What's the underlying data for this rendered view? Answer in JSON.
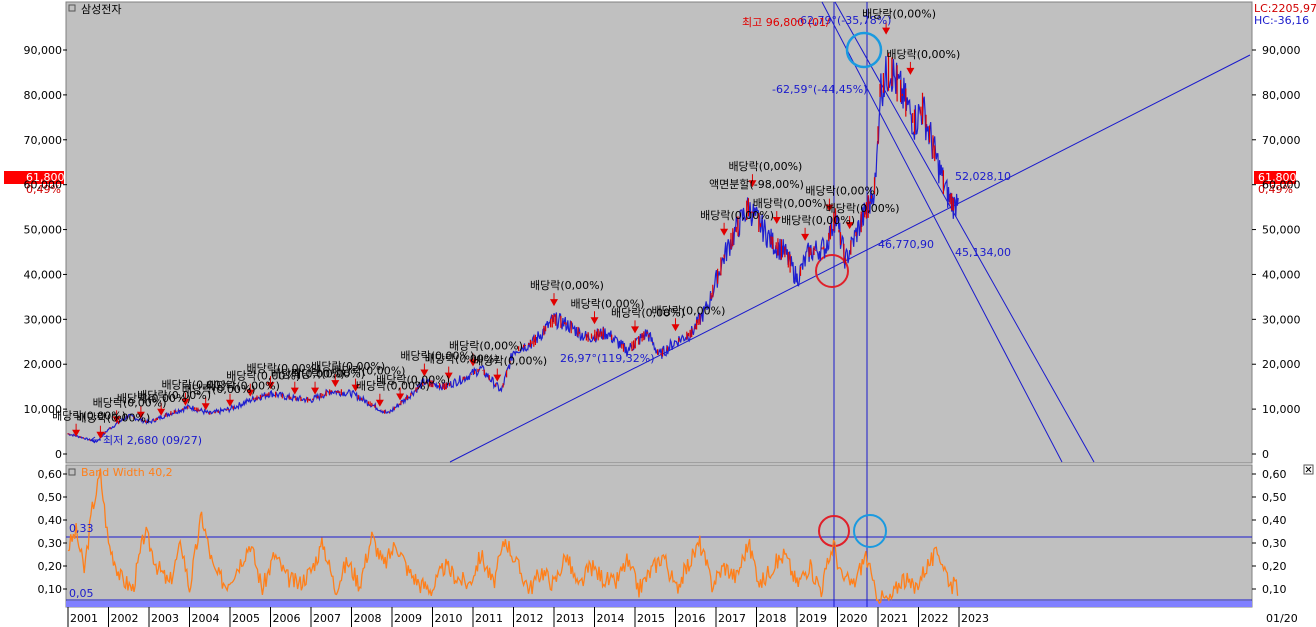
{
  "chart_data": [
    {
      "type": "line",
      "title": "삼성전자",
      "top_right_labels": {
        "lc": "LC:2205,97",
        "hc": "HC:-36,16"
      },
      "current_price": {
        "value": "61,800",
        "change": "0,49%"
      },
      "ylim": [
        0,
        95000
      ],
      "y_ticks": [
        "90,000",
        "80,000",
        "70,000",
        "60,000",
        "50,000",
        "40,000",
        "30,000",
        "20,000",
        "10,000",
        "0"
      ],
      "y_tick_values": [
        90000,
        80000,
        70000,
        60000,
        50000,
        40000,
        30000,
        20000,
        10000,
        0
      ],
      "x_ticks": [
        "2001",
        "2002",
        "2003",
        "2004",
        "2005",
        "2006",
        "2007",
        "2008",
        "2009",
        "2010",
        "2011",
        "2012",
        "2013",
        "2014",
        "2015",
        "2016",
        "2017",
        "2018",
        "2019",
        "2020",
        "2021",
        "2022",
        "2023"
      ],
      "date_label": "01/20",
      "series": [
        {
          "color": "#1f1fd0",
          "x": [
            2001.0,
            2001.3,
            2001.7,
            2002.0,
            2002.5,
            2003.0,
            2003.5,
            2004.0,
            2004.5,
            2005.0,
            2005.5,
            2006.0,
            2006.5,
            2007.0,
            2007.5,
            2008.0,
            2008.5,
            2008.9,
            2009.3,
            2009.8,
            2010.3,
            2010.8,
            2011.2,
            2011.6,
            2011.7,
            2012.0,
            2012.5,
            2013.0,
            2013.3,
            2013.8,
            2014.3,
            2014.8,
            2015.3,
            2015.6,
            2016.0,
            2016.4,
            2016.8,
            2017.2,
            2017.5,
            2017.8,
            2018.1,
            2018.4,
            2018.7,
            2019.0,
            2019.3,
            2019.7,
            2019.95,
            2020.2,
            2020.5,
            2020.8,
            2020.95,
            2021.05,
            2021.3,
            2021.6,
            2021.9,
            2022.1,
            2022.4,
            2022.7,
            2022.9,
            2023.0
          ],
          "values": [
            4500,
            3800,
            2700,
            5500,
            8500,
            7000,
            9000,
            10500,
            9000,
            10000,
            12000,
            13500,
            12500,
            12000,
            14000,
            13500,
            11000,
            9000,
            12000,
            16000,
            15000,
            17000,
            19000,
            15000,
            14000,
            23000,
            25000,
            30000,
            29000,
            26000,
            27000,
            23000,
            27000,
            22000,
            25000,
            27000,
            33000,
            44000,
            50000,
            55000,
            51000,
            47000,
            45000,
            39000,
            45000,
            46000,
            53000,
            43000,
            50000,
            56000,
            61000,
            81000,
            86000,
            80000,
            74000,
            77000,
            67000,
            58000,
            55000,
            60000
          ]
        }
      ],
      "markers": {
        "high_label": "최고 96,800 (01/",
        "low_label": "최저 2,680 (09/27)",
        "low_value": 2680,
        "high_value": 96800
      },
      "line_labels": [
        {
          "text": "-62,79°(-35,78%)",
          "color": "#1a1acc"
        },
        {
          "text": "-62,59°(-44,45%)",
          "color": "#1a1acc"
        },
        {
          "text": "26,97°(119,32%)",
          "color": "#1a1acc"
        },
        {
          "text": "52,028,10",
          "color": "#1a1acc"
        },
        {
          "text": "46,770,90",
          "color": "#1a1acc"
        },
        {
          "text": "45,134,00",
          "color": "#1a1acc"
        }
      ],
      "dividend_labels": [
        {
          "text": "배당락(0,00%)"
        },
        {
          "text": "배당락(0,00%)"
        },
        {
          "text": "배당락(0,00%)"
        },
        {
          "text": "배당락(0,00%)"
        },
        {
          "text": "배당락(0,00%)"
        },
        {
          "text": "배당락(0,00%)"
        },
        {
          "text": "배당락(0,00%)"
        },
        {
          "text": "배당락(0,00%)"
        },
        {
          "text": "배당락(0,00%)"
        },
        {
          "text": "배당락(0,00%)"
        },
        {
          "text": "배당락(0,00%)"
        },
        {
          "text": "배당락(0,00%)"
        },
        {
          "text": "배당락(0,00%)"
        },
        {
          "text": "배당락(0,00%)"
        },
        {
          "text": "배당락(0,00%)"
        },
        {
          "text": "배당락(0,00%)"
        },
        {
          "text": "배당락(0,00%)"
        },
        {
          "text": "배당락(0,00%)"
        },
        {
          "text": "배당락(0,00%)"
        },
        {
          "text": "배당락(0,00%)"
        },
        {
          "text": "배당락(0,00%)"
        },
        {
          "text": "배당락(0,00%)"
        },
        {
          "text": "배당락(0,00%)"
        },
        {
          "text": "배당락(0,00%)"
        },
        {
          "text": "배당락(0,00%)"
        },
        {
          "text": "배당락(0,00%)"
        },
        {
          "text": "배당락(0,00%)"
        },
        {
          "text": "배당락(0,00%)"
        },
        {
          "text": "배당락(0,00%)"
        },
        {
          "text": "배당락(0,00%)"
        },
        {
          "text": "배당락(0,00%)"
        },
        {
          "text": "배당락(0,00%)"
        }
      ],
      "split_label": "액면분할(-98,00%)"
    },
    {
      "type": "line",
      "title": "Band Width 40,2",
      "ylim": [
        0,
        0.65
      ],
      "y_ticks": [
        "0,60",
        "0,50",
        "0,40",
        "0,30",
        "0,20",
        "0,10"
      ],
      "y_tick_values": [
        0.6,
        0.5,
        0.4,
        0.3,
        0.2,
        0.1
      ],
      "reference_lines": [
        {
          "label": "0,33",
          "value": 0.33
        },
        {
          "label": "0,05",
          "value": 0.05
        }
      ],
      "series": [
        {
          "color": "#ff7f1a",
          "x": [
            2001.0,
            2001.2,
            2001.4,
            2001.6,
            2001.8,
            2002.0,
            2002.3,
            2002.6,
            2002.9,
            2003.2,
            2003.5,
            2003.8,
            2004.0,
            2004.3,
            2004.6,
            2004.9,
            2005.2,
            2005.5,
            2005.8,
            2006.1,
            2006.4,
            2006.7,
            2007.0,
            2007.3,
            2007.6,
            2007.9,
            2008.2,
            2008.5,
            2008.8,
            2009.1,
            2009.4,
            2009.7,
            2010.0,
            2010.3,
            2010.6,
            2010.9,
            2011.2,
            2011.5,
            2011.8,
            2012.1,
            2012.4,
            2012.7,
            2013.0,
            2013.3,
            2013.6,
            2013.9,
            2014.2,
            2014.5,
            2014.8,
            2015.1,
            2015.4,
            2015.7,
            2016.0,
            2016.3,
            2016.6,
            2016.9,
            2017.2,
            2017.5,
            2017.8,
            2018.1,
            2018.4,
            2018.7,
            2019.0,
            2019.3,
            2019.6,
            2019.9,
            2020.1,
            2020.4,
            2020.7,
            2020.9,
            2021.1,
            2021.3,
            2021.6,
            2021.9,
            2022.2,
            2022.5,
            2022.8,
            2023.0
          ],
          "values": [
            0.28,
            0.35,
            0.18,
            0.45,
            0.6,
            0.3,
            0.15,
            0.1,
            0.35,
            0.2,
            0.12,
            0.3,
            0.1,
            0.42,
            0.18,
            0.12,
            0.2,
            0.3,
            0.1,
            0.25,
            0.15,
            0.12,
            0.18,
            0.3,
            0.1,
            0.22,
            0.12,
            0.33,
            0.2,
            0.3,
            0.18,
            0.12,
            0.1,
            0.2,
            0.15,
            0.12,
            0.25,
            0.12,
            0.32,
            0.2,
            0.1,
            0.18,
            0.12,
            0.25,
            0.1,
            0.2,
            0.15,
            0.12,
            0.22,
            0.1,
            0.18,
            0.25,
            0.1,
            0.2,
            0.3,
            0.12,
            0.2,
            0.15,
            0.3,
            0.12,
            0.2,
            0.25,
            0.12,
            0.2,
            0.1,
            0.3,
            0.15,
            0.12,
            0.25,
            0.1,
            0.06,
            0.05,
            0.15,
            0.1,
            0.2,
            0.26,
            0.12,
            0.1
          ]
        }
      ]
    }
  ],
  "colors": {
    "panel_bg": "#c0c0c0",
    "price_line": "#1f1fd0",
    "up_color": "#e00000",
    "trend_line": "#1a1acc",
    "bandwidth": "#ff7f1a",
    "price_label_bg": "#ff0000",
    "circle_red": "#e0202a",
    "circle_blue": "#1a9ae0"
  },
  "icons": {
    "panel_toggle": "square-icon",
    "close_icon": "close-icon"
  }
}
